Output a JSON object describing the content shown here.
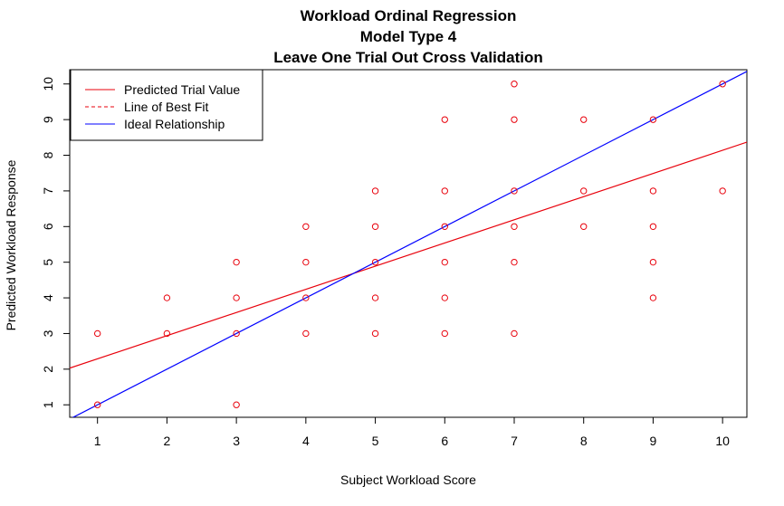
{
  "chart_data": {
    "type": "scatter",
    "title_lines": [
      "Workload Ordinal Regression",
      "Model Type  4",
      "Leave One Trial Out Cross Validation"
    ],
    "xlabel": "Subject Workload Score",
    "ylabel": "Predicted Workload Response",
    "x_ticks": [
      1,
      2,
      3,
      4,
      5,
      6,
      7,
      8,
      9,
      10
    ],
    "y_ticks": [
      1,
      2,
      3,
      4,
      5,
      6,
      7,
      8,
      9,
      10
    ],
    "xlim": [
      0.6,
      10.35
    ],
    "ylim": [
      0.65,
      10.4
    ],
    "points": [
      [
        1,
        3
      ],
      [
        1,
        1
      ],
      [
        2,
        4
      ],
      [
        2,
        3
      ],
      [
        3,
        5
      ],
      [
        3,
        4
      ],
      [
        3,
        3
      ],
      [
        3,
        1
      ],
      [
        4,
        6
      ],
      [
        4,
        5
      ],
      [
        4,
        4
      ],
      [
        4,
        3
      ],
      [
        5,
        7
      ],
      [
        5,
        6
      ],
      [
        5,
        5
      ],
      [
        5,
        4
      ],
      [
        5,
        3
      ],
      [
        6,
        9
      ],
      [
        6,
        7
      ],
      [
        6,
        6
      ],
      [
        6,
        5
      ],
      [
        6,
        4
      ],
      [
        6,
        3
      ],
      [
        7,
        10
      ],
      [
        7,
        9
      ],
      [
        7,
        7
      ],
      [
        7,
        6
      ],
      [
        7,
        5
      ],
      [
        7,
        3
      ],
      [
        8,
        9
      ],
      [
        8,
        7
      ],
      [
        8,
        6
      ],
      [
        9,
        9
      ],
      [
        9,
        7
      ],
      [
        9,
        6
      ],
      [
        9,
        5
      ],
      [
        9,
        4
      ],
      [
        10,
        10
      ],
      [
        10,
        7
      ]
    ],
    "best_fit": {
      "intercept": 1.64,
      "slope": 0.65
    },
    "ideal": {
      "intercept": 0,
      "slope": 1
    },
    "legend": {
      "position": "top-left",
      "entries": [
        {
          "label": "Predicted Trial Value",
          "style": "solid",
          "color": "#e8000b"
        },
        {
          "label": "Line of Best Fit",
          "style": "dashed",
          "color": "#e8000b"
        },
        {
          "label": "Ideal Relationship",
          "style": "solid",
          "color": "#0000ff"
        }
      ]
    },
    "colors": {
      "points": "#e8000b",
      "best_fit": "#e8000b",
      "ideal": "#0000ff"
    }
  }
}
